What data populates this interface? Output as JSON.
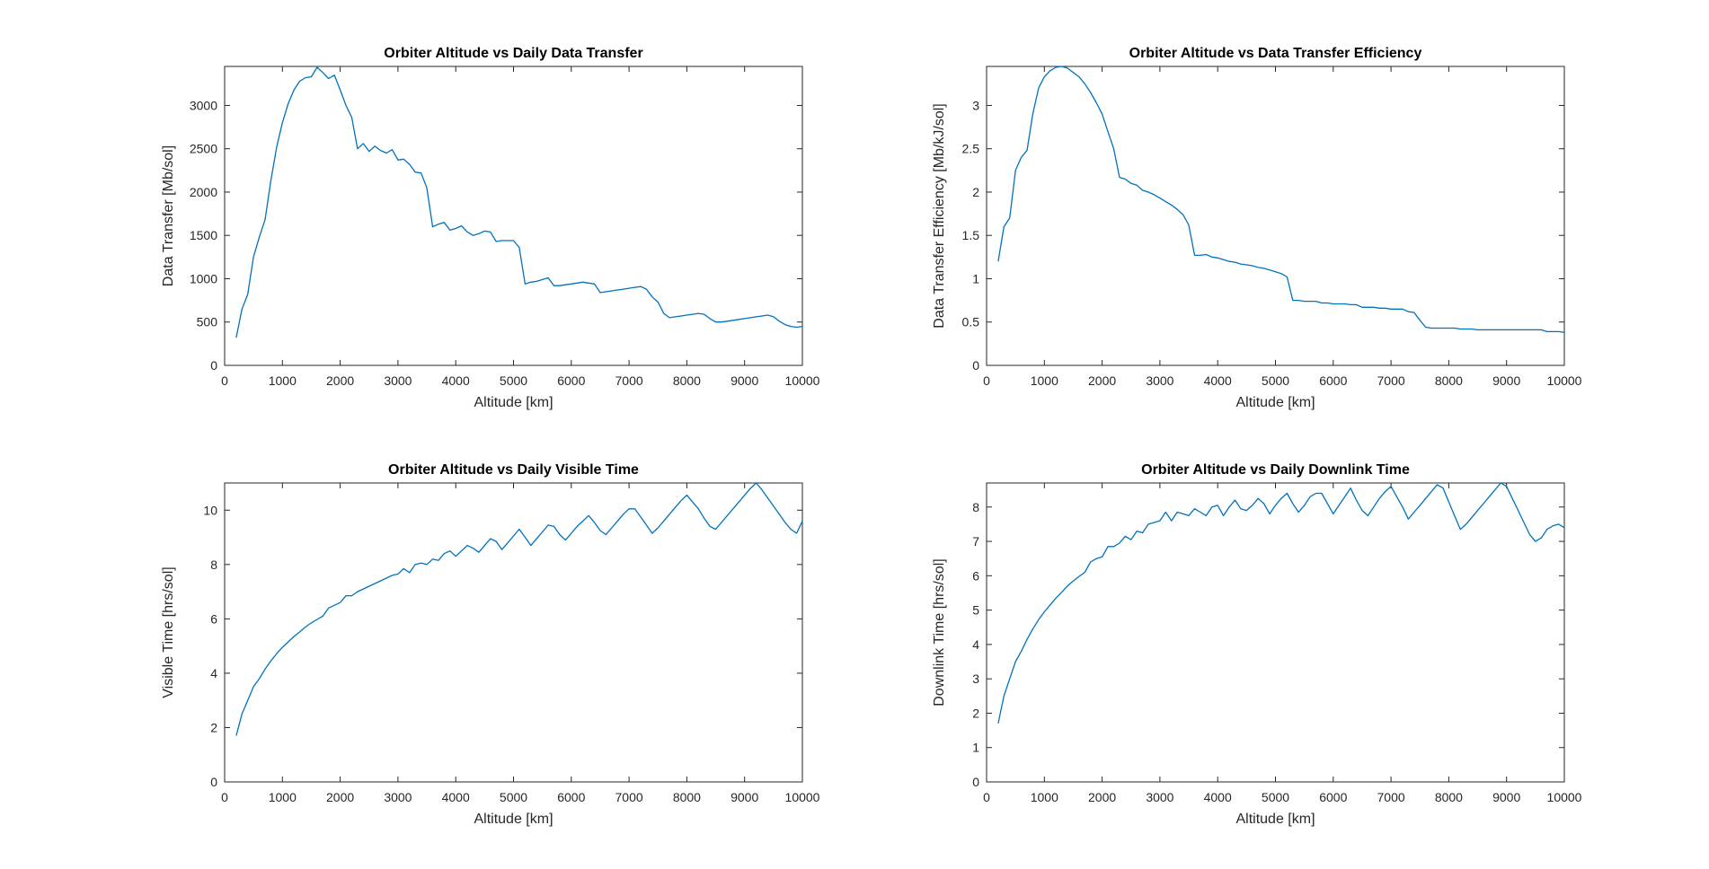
{
  "chart_data": [
    {
      "type": "line",
      "title": "Orbiter Altitude vs Daily Data Transfer",
      "xlabel": "Altitude [km]",
      "ylabel": "Data Transfer [Mb/sol]",
      "xlim": [
        0,
        10000
      ],
      "ylim": [
        0,
        3450
      ],
      "xticks": [
        0,
        1000,
        2000,
        3000,
        4000,
        5000,
        6000,
        7000,
        8000,
        9000,
        10000
      ],
      "yticks": [
        0,
        500,
        1000,
        1500,
        2000,
        2500,
        3000
      ],
      "ytick_labels": [
        "0",
        "500",
        "1000",
        "1500",
        "2000",
        "2500",
        "3000"
      ],
      "grid": false,
      "color": "#0072BD",
      "x": [
        200,
        300,
        400,
        500,
        600,
        700,
        800,
        900,
        1000,
        1100,
        1200,
        1300,
        1400,
        1500,
        1600,
        1700,
        1800,
        1900,
        2000,
        2100,
        2200,
        2300,
        2400,
        2500,
        2600,
        2700,
        2800,
        2900,
        3000,
        3100,
        3200,
        3300,
        3400,
        3500,
        3600,
        3700,
        3800,
        3900,
        4000,
        4100,
        4200,
        4300,
        4400,
        4500,
        4600,
        4700,
        4800,
        4900,
        5000,
        5100,
        5200,
        5300,
        5400,
        5500,
        5600,
        5700,
        5800,
        5900,
        6000,
        6100,
        6200,
        6300,
        6400,
        6500,
        6600,
        6700,
        6800,
        6900,
        7000,
        7100,
        7200,
        7300,
        7400,
        7500,
        7600,
        7700,
        7800,
        7900,
        8000,
        8100,
        8200,
        8300,
        8400,
        8500,
        8600,
        8700,
        8800,
        8900,
        9000,
        9100,
        9200,
        9300,
        9400,
        9500,
        9600,
        9700,
        9800,
        9900,
        10000
      ],
      "y": [
        320,
        650,
        820,
        1250,
        1480,
        1680,
        2130,
        2520,
        2800,
        3020,
        3180,
        3280,
        3320,
        3330,
        3440,
        3380,
        3310,
        3350,
        3180,
        3000,
        2860,
        2500,
        2560,
        2470,
        2530,
        2480,
        2450,
        2490,
        2370,
        2380,
        2320,
        2230,
        2220,
        2050,
        1600,
        1630,
        1650,
        1560,
        1580,
        1610,
        1540,
        1500,
        1520,
        1550,
        1540,
        1430,
        1440,
        1440,
        1440,
        1360,
        940,
        960,
        970,
        990,
        1010,
        920,
        920,
        930,
        940,
        950,
        960,
        950,
        940,
        840,
        850,
        860,
        870,
        880,
        890,
        900,
        910,
        880,
        790,
        730,
        600,
        550,
        560,
        570,
        580,
        590,
        600,
        590,
        540,
        500,
        500,
        510,
        520,
        530,
        540,
        550,
        560,
        570,
        580,
        560,
        510,
        470,
        450,
        440,
        450
      ]
    },
    {
      "type": "line",
      "title": "Orbiter Altitude vs Data Transfer Efficiency",
      "xlabel": "Altitude [km]",
      "ylabel": "Data Transfer Efficiency [Mb/kJ/sol]",
      "xlim": [
        0,
        10000
      ],
      "ylim": [
        0,
        3.45
      ],
      "xticks": [
        0,
        1000,
        2000,
        3000,
        4000,
        5000,
        6000,
        7000,
        8000,
        9000,
        10000
      ],
      "yticks": [
        0,
        0.5,
        1,
        1.5,
        2,
        2.5,
        3
      ],
      "ytick_labels": [
        "0",
        "0.5",
        "1",
        "1.5",
        "2",
        "2.5",
        "3"
      ],
      "grid": false,
      "color": "#0072BD",
      "x": [
        200,
        300,
        400,
        500,
        600,
        700,
        800,
        900,
        1000,
        1100,
        1200,
        1300,
        1400,
        1500,
        1600,
        1700,
        1800,
        1900,
        2000,
        2100,
        2200,
        2300,
        2400,
        2500,
        2600,
        2700,
        2800,
        2900,
        3000,
        3100,
        3200,
        3300,
        3400,
        3500,
        3600,
        3700,
        3800,
        3900,
        4000,
        4100,
        4200,
        4300,
        4400,
        4500,
        4600,
        4700,
        4800,
        4900,
        5000,
        5100,
        5200,
        5300,
        5400,
        5500,
        5600,
        5700,
        5800,
        5900,
        6000,
        6100,
        6200,
        6300,
        6400,
        6500,
        6600,
        6700,
        6800,
        6900,
        7000,
        7100,
        7200,
        7300,
        7400,
        7500,
        7600,
        7700,
        7800,
        7900,
        8000,
        8100,
        8200,
        8300,
        8400,
        8500,
        8600,
        8700,
        8800,
        8900,
        9000,
        9100,
        9200,
        9300,
        9400,
        9500,
        9600,
        9700,
        9800,
        9900,
        10000
      ],
      "y": [
        1.2,
        1.6,
        1.7,
        2.25,
        2.4,
        2.48,
        2.9,
        3.2,
        3.33,
        3.4,
        3.44,
        3.45,
        3.43,
        3.38,
        3.33,
        3.25,
        3.15,
        3.03,
        2.9,
        2.7,
        2.5,
        2.17,
        2.15,
        2.1,
        2.08,
        2.02,
        2.0,
        1.97,
        1.93,
        1.89,
        1.85,
        1.8,
        1.74,
        1.62,
        1.27,
        1.27,
        1.28,
        1.25,
        1.24,
        1.22,
        1.2,
        1.19,
        1.17,
        1.16,
        1.15,
        1.13,
        1.12,
        1.1,
        1.08,
        1.06,
        1.02,
        0.75,
        0.75,
        0.74,
        0.74,
        0.74,
        0.72,
        0.72,
        0.71,
        0.71,
        0.71,
        0.7,
        0.7,
        0.67,
        0.67,
        0.67,
        0.66,
        0.66,
        0.65,
        0.65,
        0.65,
        0.62,
        0.61,
        0.52,
        0.44,
        0.43,
        0.43,
        0.43,
        0.43,
        0.43,
        0.42,
        0.42,
        0.42,
        0.41,
        0.41,
        0.41,
        0.41,
        0.41,
        0.41,
        0.41,
        0.41,
        0.41,
        0.41,
        0.41,
        0.41,
        0.39,
        0.39,
        0.39,
        0.38
      ]
    },
    {
      "type": "line",
      "title": "Orbiter Altitude vs Daily Visible Time",
      "xlabel": "Altitude [km]",
      "ylabel": "Visible Time  [hrs/sol]",
      "xlim": [
        0,
        10000
      ],
      "ylim": [
        0,
        11
      ],
      "xticks": [
        0,
        1000,
        2000,
        3000,
        4000,
        5000,
        6000,
        7000,
        8000,
        9000,
        10000
      ],
      "yticks": [
        0,
        2,
        4,
        6,
        8,
        10
      ],
      "ytick_labels": [
        "0",
        "2",
        "4",
        "6",
        "8",
        "10"
      ],
      "grid": false,
      "color": "#0072BD",
      "x": [
        200,
        300,
        400,
        500,
        600,
        700,
        800,
        900,
        1000,
        1100,
        1200,
        1300,
        1400,
        1500,
        1600,
        1700,
        1800,
        1900,
        2000,
        2100,
        2200,
        2300,
        2400,
        2500,
        2600,
        2700,
        2800,
        2900,
        3000,
        3100,
        3200,
        3300,
        3400,
        3500,
        3600,
        3700,
        3800,
        3900,
        4000,
        4100,
        4200,
        4300,
        4400,
        4500,
        4600,
        4700,
        4800,
        4900,
        5000,
        5100,
        5200,
        5300,
        5400,
        5500,
        5600,
        5700,
        5800,
        5900,
        6000,
        6100,
        6200,
        6300,
        6400,
        6500,
        6600,
        6700,
        6800,
        6900,
        7000,
        7100,
        7200,
        7300,
        7400,
        7500,
        7600,
        7700,
        7800,
        7900,
        8000,
        8100,
        8200,
        8300,
        8400,
        8500,
        8600,
        8700,
        8800,
        8900,
        9000,
        9100,
        9200,
        9300,
        9400,
        9500,
        9600,
        9700,
        9800,
        9900,
        10000
      ],
      "y": [
        1.7,
        2.5,
        3.0,
        3.5,
        3.8,
        4.15,
        4.45,
        4.72,
        4.95,
        5.15,
        5.35,
        5.52,
        5.7,
        5.85,
        5.98,
        6.1,
        6.4,
        6.5,
        6.6,
        6.85,
        6.85,
        7.0,
        7.1,
        7.2,
        7.3,
        7.4,
        7.5,
        7.6,
        7.65,
        7.85,
        7.7,
        8.0,
        8.05,
        8.0,
        8.2,
        8.15,
        8.4,
        8.5,
        8.3,
        8.5,
        8.7,
        8.6,
        8.45,
        8.7,
        8.95,
        8.85,
        8.55,
        8.8,
        9.05,
        9.3,
        9.0,
        8.7,
        8.95,
        9.2,
        9.45,
        9.4,
        9.1,
        8.9,
        9.15,
        9.4,
        9.6,
        9.8,
        9.55,
        9.25,
        9.1,
        9.35,
        9.6,
        9.85,
        10.05,
        10.05,
        9.75,
        9.45,
        9.15,
        9.35,
        9.6,
        9.85,
        10.1,
        10.35,
        10.55,
        10.3,
        10.05,
        9.7,
        9.4,
        9.3,
        9.55,
        9.8,
        10.05,
        10.3,
        10.55,
        10.8,
        11.0,
        10.75,
        10.45,
        10.15,
        9.85,
        9.55,
        9.3,
        9.15,
        9.6
      ]
    },
    {
      "type": "line",
      "title": "Orbiter Altitude vs Daily Downlink Time",
      "xlabel": "Altitude [km]",
      "ylabel": "Downlink Time  [hrs/sol]",
      "xlim": [
        0,
        10000
      ],
      "ylim": [
        0,
        8.7
      ],
      "xticks": [
        0,
        1000,
        2000,
        3000,
        4000,
        5000,
        6000,
        7000,
        8000,
        9000,
        10000
      ],
      "yticks": [
        0,
        1,
        2,
        3,
        4,
        5,
        6,
        7,
        8
      ],
      "ytick_labels": [
        "0",
        "1",
        "2",
        "3",
        "4",
        "5",
        "6",
        "7",
        "8"
      ],
      "grid": false,
      "color": "#0072BD",
      "x": [
        200,
        300,
        400,
        500,
        600,
        700,
        800,
        900,
        1000,
        1100,
        1200,
        1300,
        1400,
        1500,
        1600,
        1700,
        1800,
        1900,
        2000,
        2100,
        2200,
        2300,
        2400,
        2500,
        2600,
        2700,
        2800,
        2900,
        3000,
        3100,
        3200,
        3300,
        3400,
        3500,
        3600,
        3700,
        3800,
        3900,
        4000,
        4100,
        4200,
        4300,
        4400,
        4500,
        4600,
        4700,
        4800,
        4900,
        5000,
        5100,
        5200,
        5300,
        5400,
        5500,
        5600,
        5700,
        5800,
        5900,
        6000,
        6100,
        6200,
        6300,
        6400,
        6500,
        6600,
        6700,
        6800,
        6900,
        7000,
        7100,
        7200,
        7300,
        7400,
        7500,
        7600,
        7700,
        7800,
        7900,
        8000,
        8100,
        8200,
        8300,
        8400,
        8500,
        8600,
        8700,
        8800,
        8900,
        9000,
        9100,
        9200,
        9300,
        9400,
        9500,
        9600,
        9700,
        9800,
        9900,
        10000
      ],
      "y": [
        1.7,
        2.5,
        3.0,
        3.5,
        3.8,
        4.15,
        4.45,
        4.72,
        4.95,
        5.15,
        5.35,
        5.52,
        5.7,
        5.85,
        5.98,
        6.1,
        6.4,
        6.5,
        6.55,
        6.85,
        6.85,
        6.95,
        7.15,
        7.05,
        7.3,
        7.25,
        7.5,
        7.55,
        7.6,
        7.85,
        7.6,
        7.85,
        7.8,
        7.75,
        7.95,
        7.85,
        7.75,
        8.0,
        8.05,
        7.75,
        8.0,
        8.2,
        7.95,
        7.9,
        8.05,
        8.25,
        8.1,
        7.8,
        8.05,
        8.25,
        8.4,
        8.1,
        7.85,
        8.05,
        8.3,
        8.4,
        8.4,
        8.1,
        7.8,
        8.05,
        8.3,
        8.55,
        8.2,
        7.9,
        7.75,
        8.0,
        8.25,
        8.45,
        8.6,
        8.3,
        8.0,
        7.65,
        7.85,
        8.05,
        8.25,
        8.45,
        8.65,
        8.55,
        8.15,
        7.75,
        7.35,
        7.5,
        7.7,
        7.9,
        8.1,
        8.3,
        8.5,
        8.7,
        8.6,
        8.25,
        7.9,
        7.55,
        7.2,
        7.0,
        7.1,
        7.35,
        7.45,
        7.5,
        7.4
      ]
    }
  ]
}
